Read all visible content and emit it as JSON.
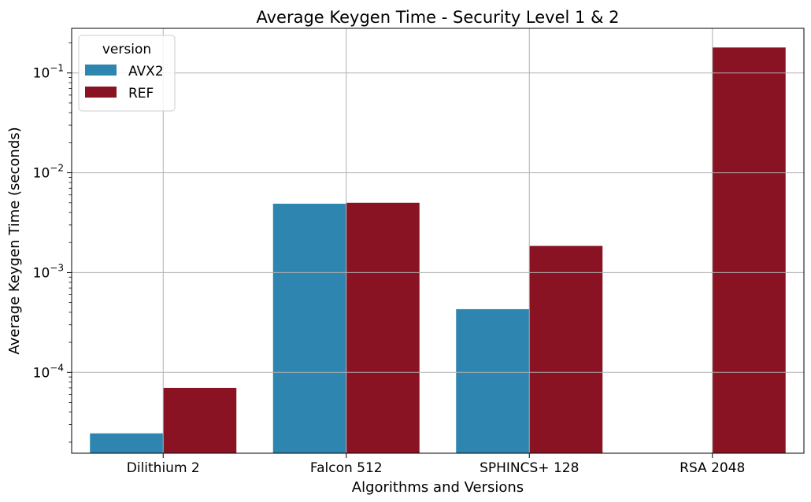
{
  "chart_data": {
    "type": "bar",
    "title": "Average Keygen Time - Security Level 1 & 2",
    "xlabel": "Algorithms and Versions",
    "ylabel": "Average Keygen Time (seconds)",
    "yscale": "log",
    "ylim": [
      1.55e-05,
      0.28
    ],
    "yticks": [
      {
        "value": 0.0001,
        "base": "10",
        "exp": "−4"
      },
      {
        "value": 0.001,
        "base": "10",
        "exp": "−3"
      },
      {
        "value": 0.01,
        "base": "10",
        "exp": "−2"
      },
      {
        "value": 0.1,
        "base": "10",
        "exp": "−1"
      }
    ],
    "categories": [
      "Dilithium 2",
      "Falcon 512",
      "SPHINCS+ 128",
      "RSA 2048"
    ],
    "series": [
      {
        "name": "AVX2",
        "color": "#2e86b0",
        "values": [
          2.45e-05,
          0.0049,
          0.00043,
          null
        ]
      },
      {
        "name": "REF",
        "color": "#891323",
        "values": [
          7e-05,
          0.005,
          0.00185,
          0.18
        ]
      }
    ],
    "legend": {
      "title": "version",
      "placement": "top-left"
    },
    "grid": true
  }
}
